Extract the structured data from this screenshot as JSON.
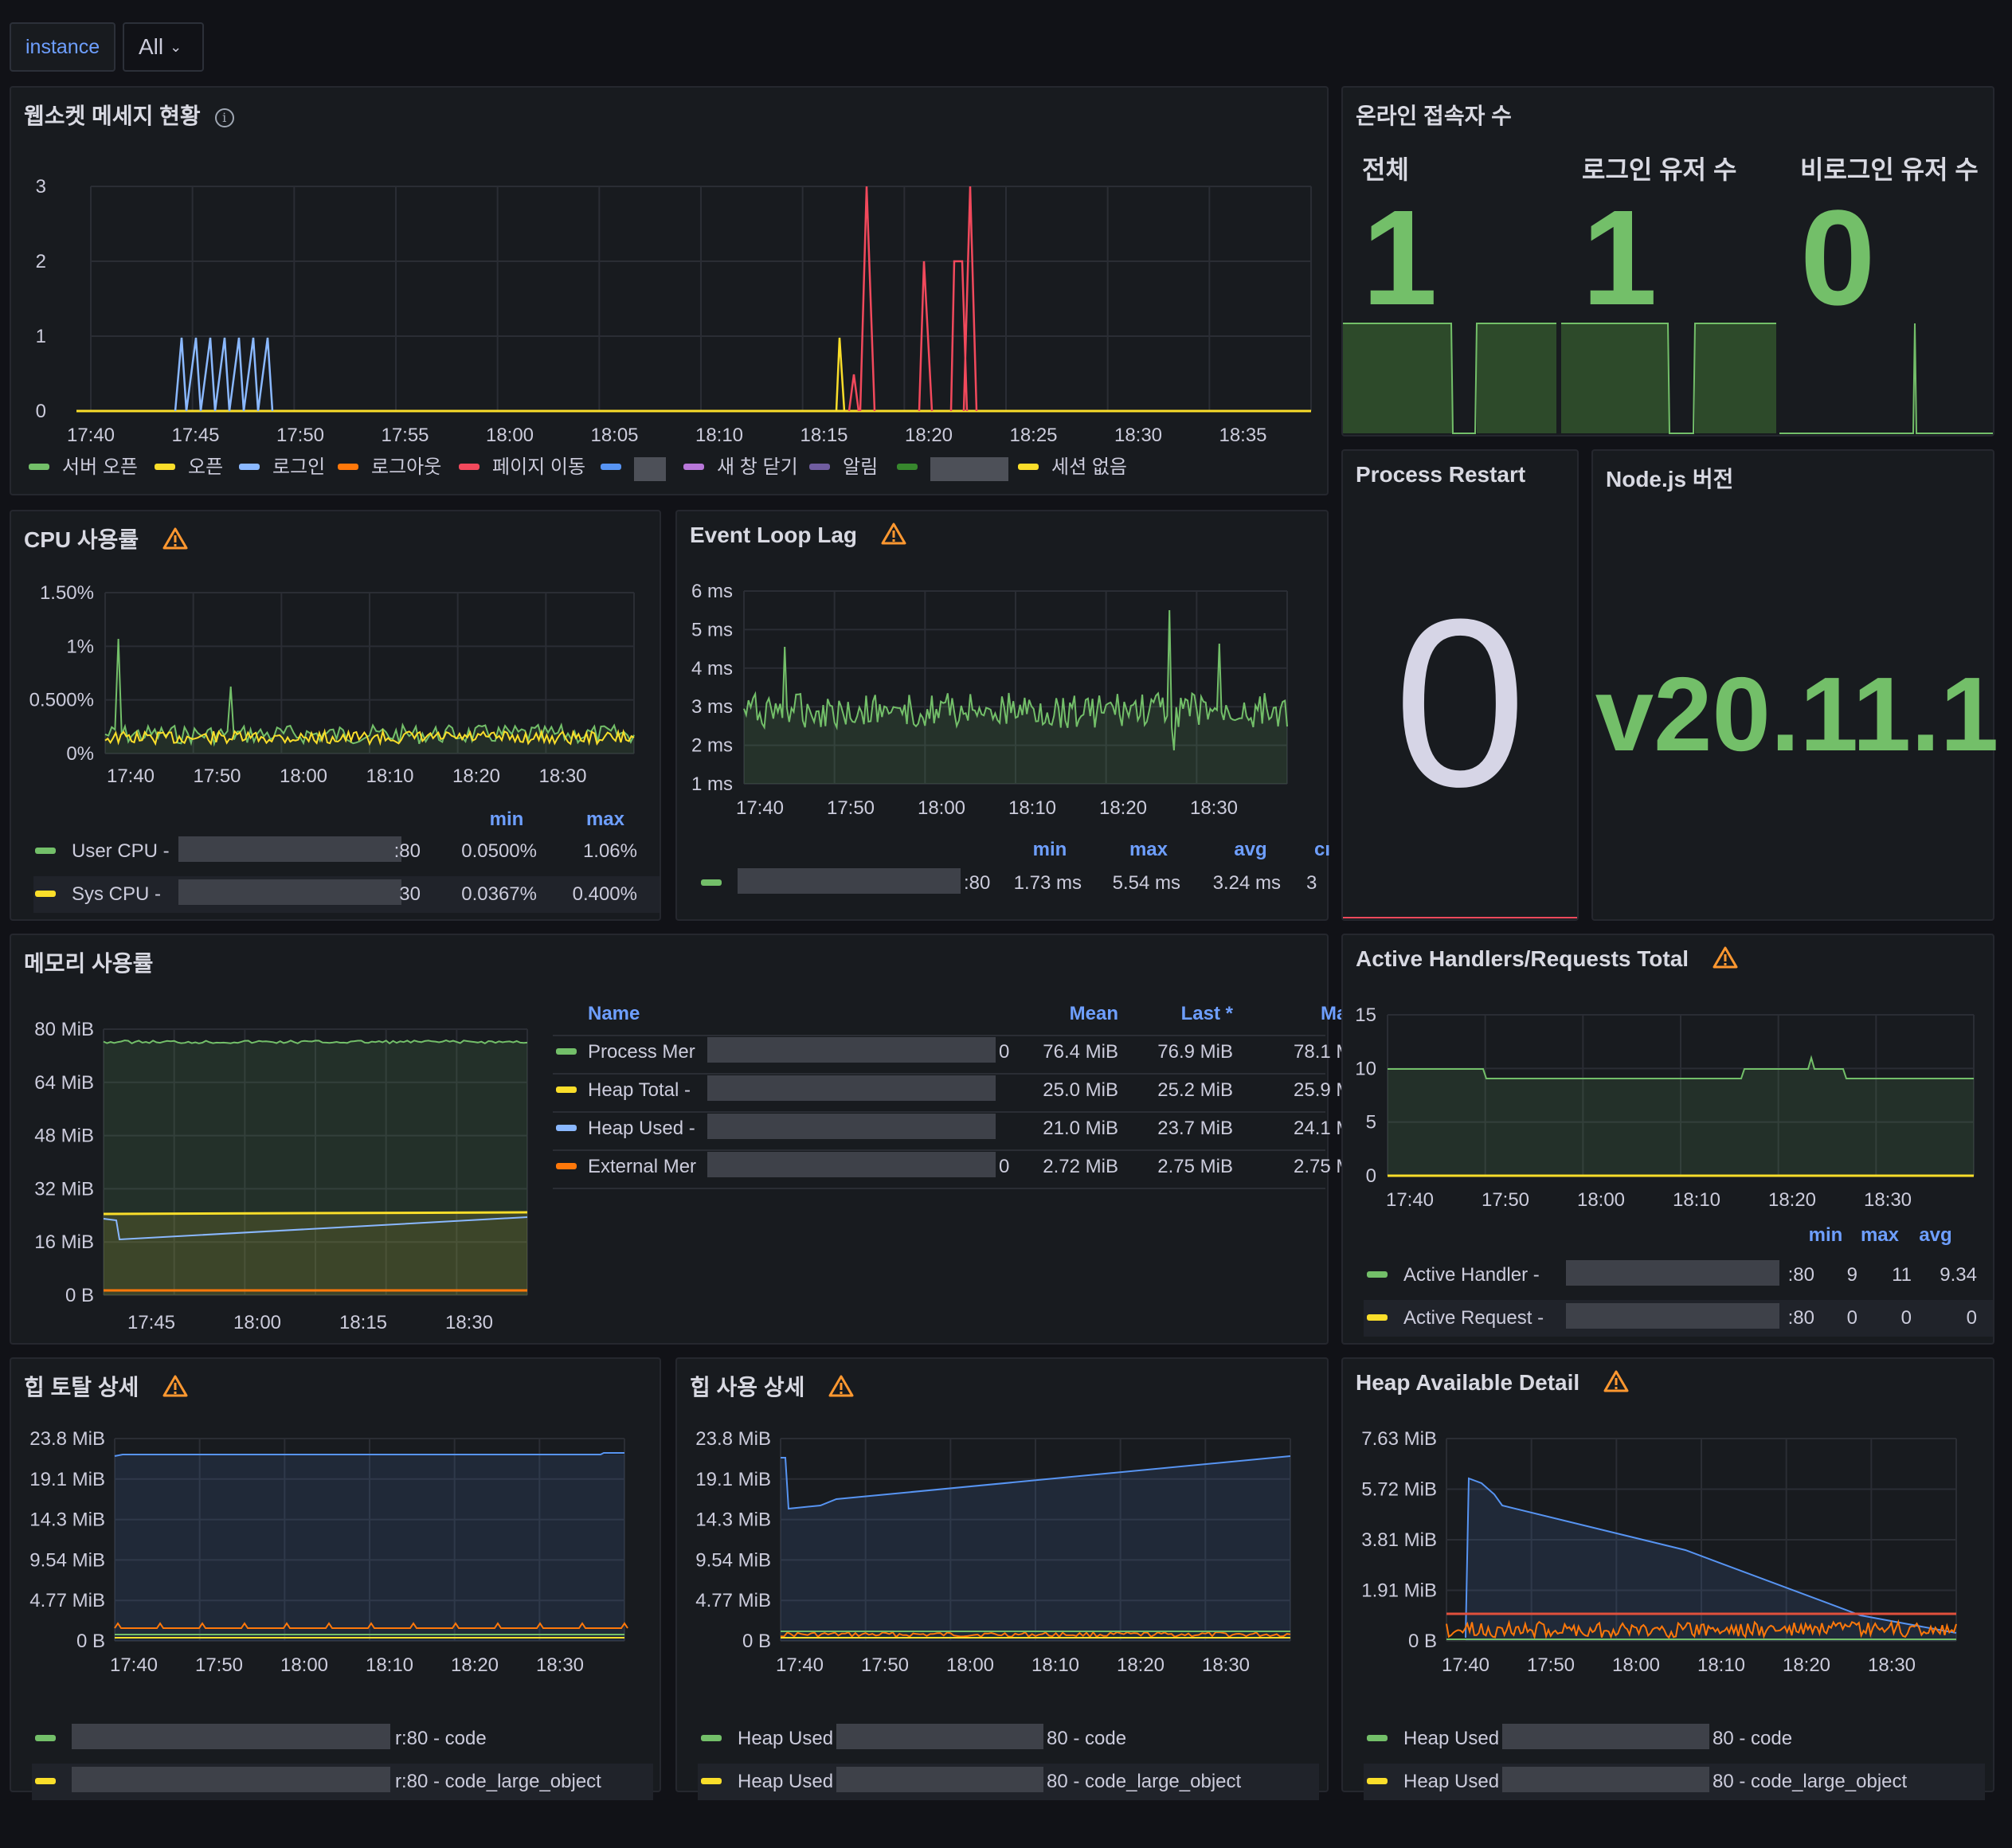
{
  "variables": {
    "label": "instance",
    "value": "All"
  },
  "panels": {
    "websocket": {
      "title": "웹소켓 메세지 현황",
      "y_ticks": [
        "3",
        "2",
        "1",
        "0"
      ],
      "x_ticks": [
        "17:40",
        "17:45",
        "17:50",
        "17:55",
        "18:00",
        "18:05",
        "18:10",
        "18:15",
        "18:20",
        "18:25",
        "18:30",
        "18:35"
      ],
      "legend": [
        {
          "label": "서버 오픈",
          "color": "#73bf69"
        },
        {
          "label": "오픈",
          "color": "#fade2a"
        },
        {
          "label": "로그인",
          "color": "#8ab8ff"
        },
        {
          "label": "로그아웃",
          "color": "#ff780a"
        },
        {
          "label": "페이지 이동",
          "color": "#f2495c"
        },
        {
          "label": "",
          "color": "#5794f2"
        },
        {
          "label": "새 창 닫기",
          "color": "#b877d9"
        },
        {
          "label": "알림",
          "color": "#705da0"
        },
        {
          "label": "",
          "color": "#37872d"
        },
        {
          "label": "세션 없음",
          "color": "#fade2a"
        }
      ]
    },
    "online": {
      "title": "온라인 접속자 수",
      "stats": [
        {
          "label": "전체",
          "value": "1"
        },
        {
          "label": "로그인 유저 수",
          "value": "1"
        },
        {
          "label": "비로그인 유저 수",
          "value": "0"
        }
      ],
      "color": "#73bf69"
    },
    "restart": {
      "title": "Process Restart ",
      "value": "0"
    },
    "nodejs": {
      "title": "Node.js 버전",
      "value": "v20.11.1"
    },
    "cpu": {
      "title": "CPU 사용률",
      "y_ticks": [
        "1.50%",
        "1%",
        "0.500%",
        "0%"
      ],
      "x_ticks": [
        "17:40",
        "17:50",
        "18:00",
        "18:10",
        "18:20",
        "18:30"
      ],
      "legend_headers": [
        "min",
        "max"
      ],
      "rows": [
        {
          "name": "User CPU - ",
          "suffix": ":80",
          "min": "0.0500%",
          "max": "1.06%",
          "color": "#73bf69"
        },
        {
          "name": "Sys CPU - ",
          "suffix": "30",
          "min": "0.0367%",
          "max": "0.400%",
          "color": "#fade2a"
        }
      ]
    },
    "eventloop": {
      "title": "Event Loop Lag",
      "y_ticks": [
        "6 ms",
        "5 ms",
        "4 ms",
        "3 ms",
        "2 ms",
        "1 ms"
      ],
      "x_ticks": [
        "17:40",
        "17:50",
        "18:00",
        "18:10",
        "18:20",
        "18:30"
      ],
      "legend_headers": [
        "min",
        "max",
        "avg",
        "cı"
      ],
      "rows": [
        {
          "suffix": ":80",
          "min": "1.73 ms",
          "max": "5.54 ms",
          "avg": "3.24 ms",
          "cur": "3",
          "color": "#73bf69"
        }
      ]
    },
    "memory": {
      "title": "메모리 사용률",
      "y_ticks": [
        "80 MiB",
        "64 MiB",
        "48 MiB",
        "32 MiB",
        "16 MiB",
        "0 B"
      ],
      "x_ticks": [
        "17:45",
        "18:00",
        "18:15",
        "18:30"
      ],
      "table_headers": [
        "Name",
        "Mean",
        "Last *",
        "Ma"
      ],
      "rows": [
        {
          "name": "Process Mer",
          "tail": "0",
          "mean": "76.4 MiB",
          "last": "76.9 MiB",
          "max": "78.1 M",
          "color": "#73bf69"
        },
        {
          "name": "Heap Total - ",
          "tail": "",
          "mean": "25.0 MiB",
          "last": "25.2 MiB",
          "max": "25.9 M",
          "color": "#fade2a"
        },
        {
          "name": "Heap Used - ",
          "tail": "",
          "mean": "21.0 MiB",
          "last": "23.7 MiB",
          "max": "24.1 M",
          "color": "#8ab8ff"
        },
        {
          "name": "External Mer",
          "tail": "0",
          "mean": "2.72 MiB",
          "last": "2.75 MiB",
          "max": "2.75 M",
          "color": "#ff780a"
        }
      ]
    },
    "handlers": {
      "title": "Active Handlers/Requests Total",
      "y_ticks": [
        "15",
        "10",
        "5",
        "0"
      ],
      "x_ticks": [
        "17:40",
        "17:50",
        "18:00",
        "18:10",
        "18:20",
        "18:30"
      ],
      "legend_headers": [
        "min",
        "max",
        "avg"
      ],
      "rows": [
        {
          "name": "Active Handler - ",
          "suffix": ":80",
          "min": "9",
          "max": "11",
          "avg": "9.34",
          "color": "#73bf69"
        },
        {
          "name": "Active Request - ",
          "suffix": ":80",
          "min": "0",
          "max": "0",
          "avg": "0",
          "color": "#fade2a"
        }
      ]
    },
    "heap_total": {
      "title": "힙 토탈 상세",
      "y_ticks": [
        "23.8 MiB",
        "19.1 MiB",
        "14.3 MiB",
        "9.54 MiB",
        "4.77 MiB",
        "0 B"
      ],
      "x_ticks": [
        "17:40",
        "17:50",
        "18:00",
        "18:10",
        "18:20",
        "18:30"
      ],
      "rows": [
        {
          "name": "",
          "suffix": "r:80 - code",
          "color": "#73bf69"
        },
        {
          "name": "",
          "suffix": "r:80 - code_large_object",
          "color": "#fade2a"
        }
      ]
    },
    "heap_used": {
      "title": "힙 사용 상세",
      "y_ticks": [
        "23.8 MiB",
        "19.1 MiB",
        "14.3 MiB",
        "9.54 MiB",
        "4.77 MiB",
        "0 B"
      ],
      "x_ticks": [
        "17:40",
        "17:50",
        "18:00",
        "18:10",
        "18:20",
        "18:30"
      ],
      "rows": [
        {
          "name": "Heap Used - ",
          "suffix": "80 - code",
          "color": "#73bf69"
        },
        {
          "name": "Heap Used - ",
          "suffix": "80 - code_large_object",
          "color": "#fade2a"
        }
      ]
    },
    "heap_avail": {
      "title": "Heap Available Detail",
      "y_ticks": [
        "7.63 MiB",
        "5.72 MiB",
        "3.81 MiB",
        "1.91 MiB",
        "0 B"
      ],
      "x_ticks": [
        "17:40",
        "17:50",
        "18:00",
        "18:10",
        "18:20",
        "18:30"
      ],
      "rows": [
        {
          "name": "Heap Used - ",
          "suffix": "80 - code",
          "color": "#73bf69"
        },
        {
          "name": "Heap Used - ",
          "suffix": "80 - code_large_object",
          "color": "#fade2a"
        }
      ]
    }
  },
  "colors": {
    "background": "#111217",
    "panel": "#181b1f",
    "green": "#73bf69",
    "yellow": "#fade2a",
    "blue": "#5794f2",
    "red": "#f2495c",
    "orange": "#ff780a",
    "warning": "#ff9830"
  }
}
